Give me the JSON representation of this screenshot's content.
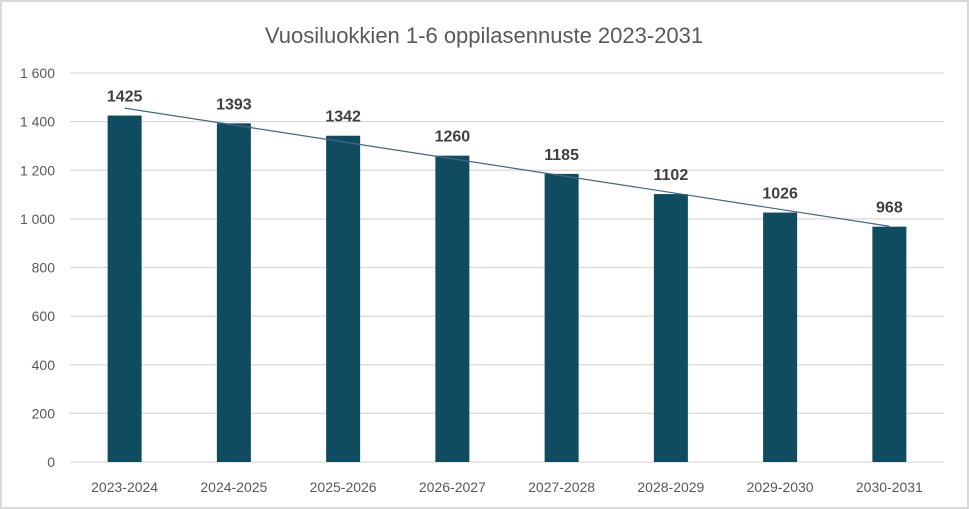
{
  "chart_data": {
    "type": "bar",
    "title": "Vuosiluokkien 1-6 oppilasennuste 2023-2031",
    "xlabel": "",
    "ylabel": "",
    "categories": [
      "2023-2024",
      "2024-2025",
      "2025-2026",
      "2026-2027",
      "2027-2028",
      "2028-2029",
      "2029-2030",
      "2030-2031"
    ],
    "values": [
      1425,
      1393,
      1342,
      1260,
      1185,
      1102,
      1026,
      968
    ],
    "ylim": [
      0,
      1600
    ],
    "yticks": [
      0,
      200,
      400,
      600,
      800,
      1000,
      1200,
      1400,
      1600
    ],
    "ytick_labels": [
      "0",
      "200",
      "400",
      "600",
      "800",
      "1 000",
      "1 200",
      "1 400",
      "1 600"
    ],
    "grid": true,
    "legend": "none",
    "trendline": "linear",
    "data_labels": true,
    "colors": {
      "bar": "#0f4c5f",
      "trendline": "#44648a",
      "grid": "#d9d9d9"
    }
  }
}
